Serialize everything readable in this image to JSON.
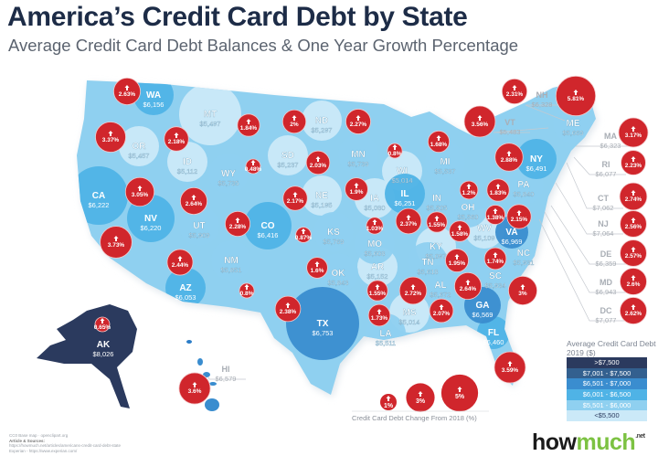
{
  "header": {
    "title": "America’s Credit Card Debt by State",
    "subtitle": "Average Credit Card Debt Balances & One Year Growth Percentage"
  },
  "states": [
    {
      "code": "WA",
      "debt": "$6,156",
      "growth": "2.63%"
    },
    {
      "code": "OR",
      "debt": "$5,457",
      "growth": "3.37%"
    },
    {
      "code": "MT",
      "debt": "$5,497",
      "growth": "1.84%"
    },
    {
      "code": "ID",
      "debt": "$5,112",
      "growth": "2.18%"
    },
    {
      "code": "WY",
      "debt": "$5,735",
      "growth": "0.48%"
    },
    {
      "code": "ND",
      "debt": "$5,297",
      "growth": "2%"
    },
    {
      "code": "SD",
      "debt": "$5,237",
      "growth": "2.03%"
    },
    {
      "code": "MN",
      "debt": "$5,739",
      "growth": "2.27%"
    },
    {
      "code": "WI",
      "debt": "$5,014",
      "growth": "0.8%"
    },
    {
      "code": "MI",
      "debt": "$5,537",
      "growth": "1.68%"
    },
    {
      "code": "CA",
      "debt": "$6,222",
      "growth": "3.73%"
    },
    {
      "code": "NV",
      "debt": "$6,220",
      "growth": "3.05%"
    },
    {
      "code": "UT",
      "debt": "$5,909",
      "growth": "2.64%"
    },
    {
      "code": "CO",
      "debt": "$6,416",
      "growth": "2.28%"
    },
    {
      "code": "NE",
      "debt": "$5,195",
      "growth": "2.17%"
    },
    {
      "code": "KS",
      "debt": "$5,769",
      "growth": "0.87%"
    },
    {
      "code": "IA",
      "debt": "$5,080",
      "growth": "1.9%"
    },
    {
      "code": "IL",
      "debt": "$6,251",
      "growth": "2.37%"
    },
    {
      "code": "IN",
      "debt": "$5,505",
      "growth": "1.55%"
    },
    {
      "code": "OH",
      "debt": "$5,560",
      "growth": "1.2%"
    },
    {
      "code": "PA",
      "debt": "$5,840",
      "growth": "1.83%"
    },
    {
      "code": "NY",
      "debt": "$6,491",
      "growth": "2.88%"
    },
    {
      "code": "VT",
      "debt": "$5,483",
      "growth": "3.56%"
    },
    {
      "code": "NH",
      "debt": "$6,328",
      "growth": "2.31%"
    },
    {
      "code": "ME",
      "debt": "$5,669",
      "growth": "5.81%"
    },
    {
      "code": "MA",
      "debt": "$6,323",
      "growth": "3.17%"
    },
    {
      "code": "RI",
      "debt": "$6,077",
      "growth": "2.23%"
    },
    {
      "code": "CT",
      "debt": "$7,062",
      "growth": "2.74%"
    },
    {
      "code": "NJ",
      "debt": "$7,064",
      "growth": "2.56%"
    },
    {
      "code": "DE",
      "debt": "$6,359",
      "growth": "2.57%"
    },
    {
      "code": "MD",
      "debt": "$6,943",
      "growth": "2.6%"
    },
    {
      "code": "DC",
      "debt": "$7,077",
      "growth": "2.62%"
    },
    {
      "code": "VA",
      "debt": "$6,969",
      "growth": "2.15%"
    },
    {
      "code": "WV",
      "debt": "$5,109",
      "growth": "1.38%"
    },
    {
      "code": "KY",
      "debt": "$5,097",
      "growth": "1.58%"
    },
    {
      "code": "MO",
      "debt": "$5,608",
      "growth": "1.03%"
    },
    {
      "code": "TN",
      "debt": "$5,618",
      "growth": "1.95%"
    },
    {
      "code": "NC",
      "debt": "$5,931",
      "growth": "1.74%"
    },
    {
      "code": "SC",
      "debt": "$5,934",
      "growth": "3%"
    },
    {
      "code": "GA",
      "debt": "$6,569",
      "growth": "2.64%"
    },
    {
      "code": "AL",
      "debt": "$5,672",
      "growth": "2.07%"
    },
    {
      "code": "MS",
      "debt": "$5,014",
      "growth": "2.72%"
    },
    {
      "code": "AR",
      "debt": "$5,152",
      "growth": "1.55%"
    },
    {
      "code": "LA",
      "debt": "$5,511",
      "growth": "1.73%"
    },
    {
      "code": "FL",
      "debt": "$6,460",
      "growth": "3.59%"
    },
    {
      "code": "TX",
      "debt": "$6,753",
      "growth": "2.38%"
    },
    {
      "code": "OK",
      "debt": "$5,843",
      "growth": "1.6%"
    },
    {
      "code": "NM",
      "debt": "$5,851",
      "growth": "0.8%"
    },
    {
      "code": "AZ",
      "debt": "$6,053",
      "growth": "2.44%"
    },
    {
      "code": "AK",
      "debt": "$8,026",
      "growth": "0.65%"
    },
    {
      "code": "HI",
      "debt": "$6,579",
      "growth": "3.6%"
    }
  ],
  "legend": {
    "title": "Average Credit Card Debt 2019 ($)",
    "bins": [
      {
        "label": ">$7,500",
        "color": "#2b3a5e",
        "text_color": "#ffffff"
      },
      {
        "label": "$7,001 - $7,500",
        "color": "#33608f",
        "text_color": "#ffffff"
      },
      {
        "label": "$6,501 - $7,000",
        "color": "#3a8dcf",
        "text_color": "#ffffff"
      },
      {
        "label": "$6,001 - $6,500",
        "color": "#4fb3e6",
        "text_color": "#ffffff"
      },
      {
        "label": "$5,501 - $6,000",
        "color": "#8fd0f0",
        "text_color": "#ffffff"
      },
      {
        "label": "<$5,500",
        "color": "#cbe9f8",
        "text_color": "#2b3a5e"
      }
    ]
  },
  "bubble_legend": {
    "items": [
      "1%",
      "3%",
      "5%"
    ],
    "caption": "Credit Card Debt Change From 2018 (%)"
  },
  "footer": {
    "line1": "CC0 Base map · openclipart.org",
    "heading": "Article & Sources:",
    "line2": "https://howmuch.net/articles/americans-credit-card-debt-state",
    "line3": "Experian - https://www.experian.com/"
  },
  "logo": {
    "how": "how",
    "much": "much",
    "net": ".net"
  },
  "colors": {
    "bubble": "#d0262c",
    "map_base": "#7fcaee",
    "title": "#1d2c47"
  }
}
